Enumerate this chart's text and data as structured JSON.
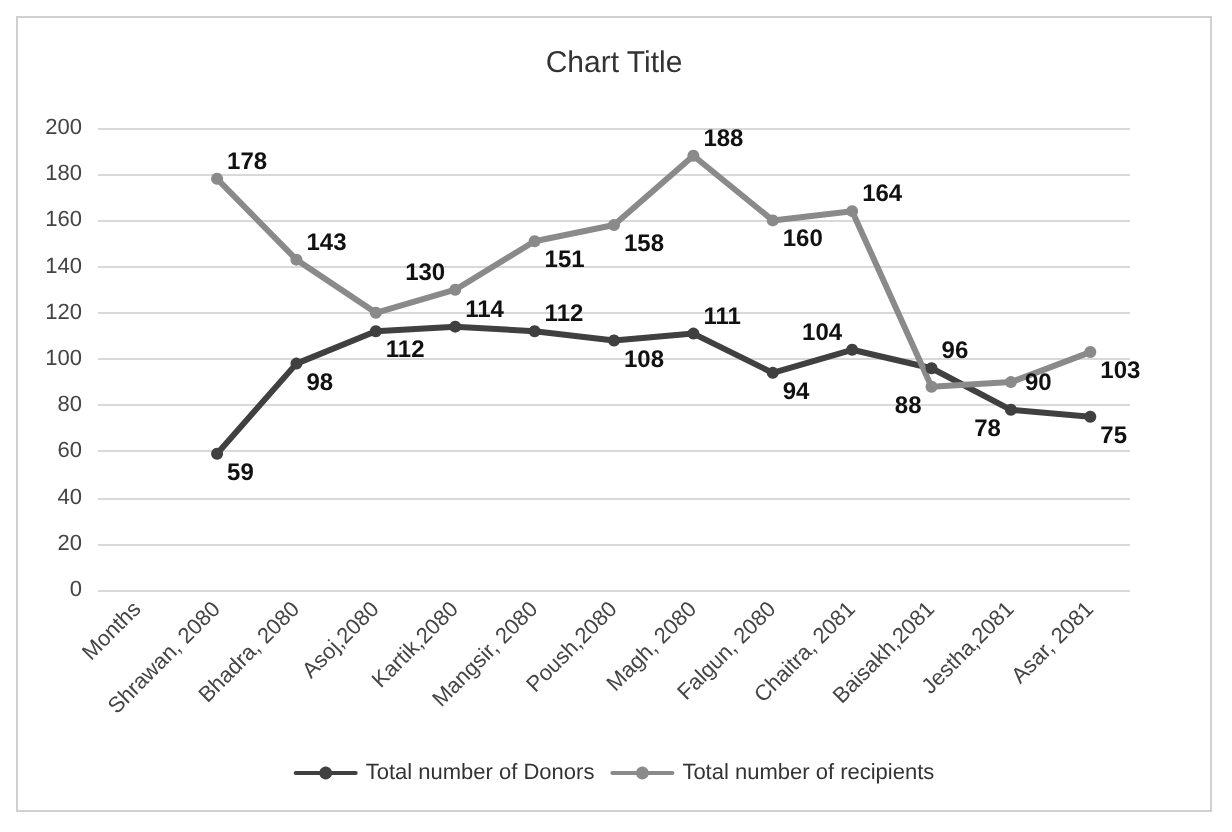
{
  "chart_data": {
    "type": "line",
    "title": "Chart Title",
    "categories": [
      "Months",
      "Shrawan, 2080",
      "Bhadra, 2080",
      "Asoj,2080",
      "Kartik,2080",
      "Mangsir, 2080",
      "Poush,2080",
      "Magh, 2080",
      "Falgun, 2080",
      "Chaitra, 2081",
      "Baisakh,2081",
      "Jestha,2081",
      "Asar, 2081"
    ],
    "series": [
      {
        "name": "Total number of Donors",
        "color": "#404040",
        "values": [
          null,
          59,
          98,
          112,
          114,
          112,
          108,
          111,
          94,
          104,
          96,
          78,
          75
        ],
        "value_labels": [
          null,
          "59",
          "98",
          "112",
          "114",
          "112",
          "108",
          "111",
          "94",
          "104",
          "96",
          "78",
          "75"
        ]
      },
      {
        "name": "Total number of recipients",
        "color": "#8a8a8a",
        "values": [
          null,
          178,
          143,
          120,
          130,
          151,
          158,
          188,
          160,
          164,
          88,
          90,
          103
        ],
        "value_labels": [
          null,
          "178",
          "143",
          null,
          "130",
          "151",
          "158",
          "188",
          "160",
          "164",
          "88",
          "90",
          "103"
        ]
      }
    ],
    "ylim": [
      0,
      200
    ],
    "yticks": [
      0,
      20,
      40,
      60,
      80,
      100,
      120,
      140,
      160,
      180,
      200
    ],
    "grid": "y",
    "legend": "bottom",
    "marker": "circle",
    "line_style": "solid"
  }
}
